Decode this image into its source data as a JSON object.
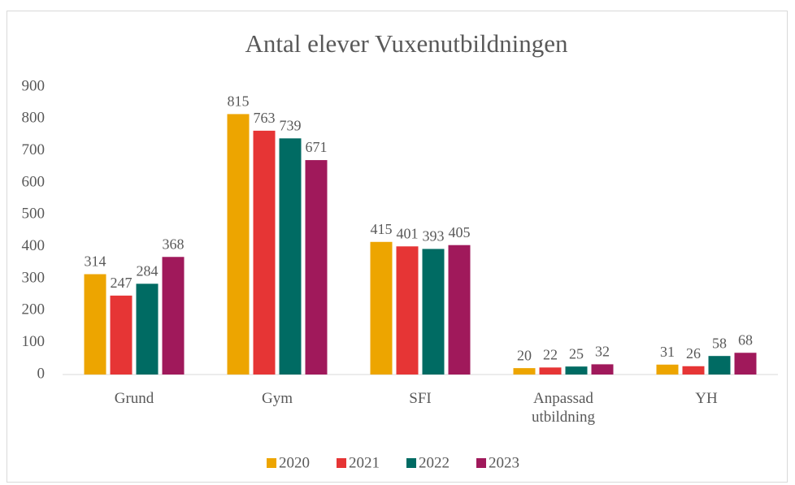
{
  "chart_data": {
    "type": "bar",
    "title": "Antal elever Vuxenutbildningen",
    "categories": [
      "Grund",
      "Gym",
      "SFI",
      "Anpassad utbildning",
      "YH"
    ],
    "series": [
      {
        "name": "2020",
        "color": "#eda500",
        "values": [
          314,
          815,
          415,
          20,
          31
        ]
      },
      {
        "name": "2021",
        "color": "#e63535",
        "values": [
          247,
          763,
          401,
          22,
          26
        ]
      },
      {
        "name": "2022",
        "color": "#006b63",
        "values": [
          284,
          739,
          393,
          25,
          58
        ]
      },
      {
        "name": "2023",
        "color": "#a0195b",
        "values": [
          368,
          671,
          405,
          32,
          68
        ]
      }
    ],
    "ylim": [
      0,
      900
    ],
    "yticks": [
      0,
      100,
      200,
      300,
      400,
      500,
      600,
      700,
      800,
      900
    ],
    "grid": false,
    "legend": "bottom"
  }
}
